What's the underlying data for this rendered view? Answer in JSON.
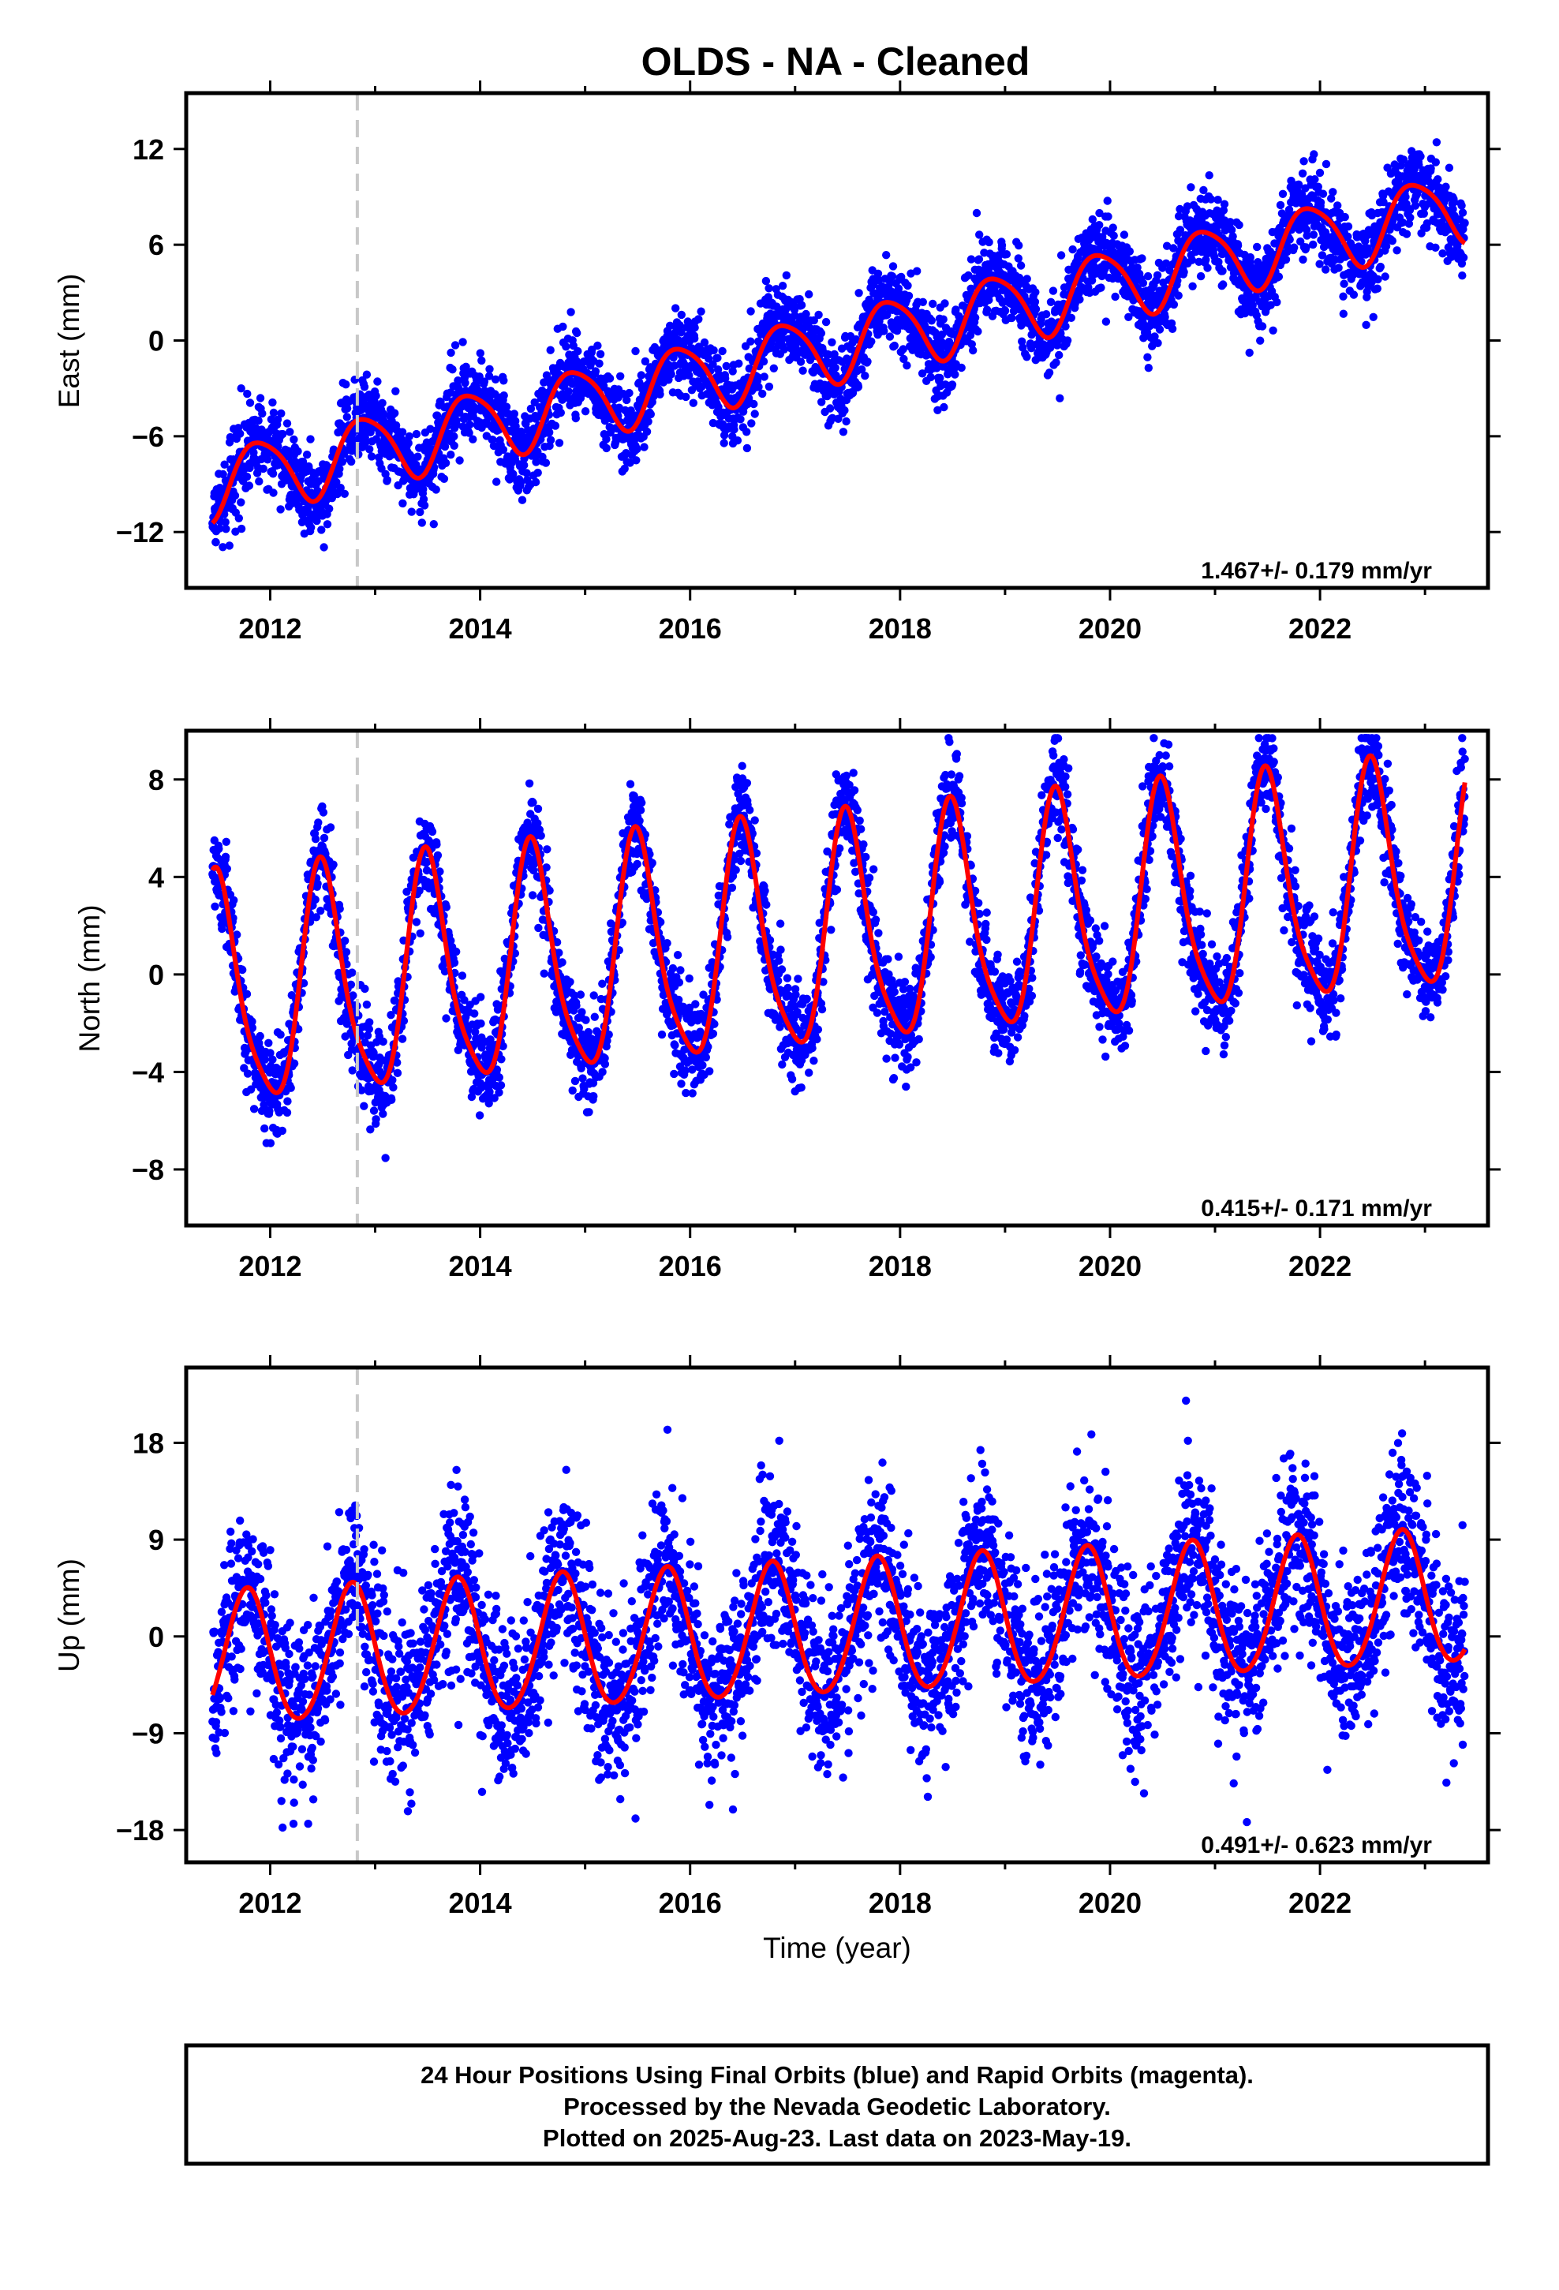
{
  "title": "OLDS  - NA - Cleaned",
  "xlabel": "Time (year)",
  "footer": {
    "line1": "24 Hour Positions Using Final Orbits (blue) and Rapid Orbits (magenta).",
    "line2": "Processed by the Nevada Geodetic Laboratory.",
    "line3": "Plotted on 2025-Aug-23. Last data on 2023-May-19."
  },
  "colors": {
    "points": "#0000ff",
    "model": "#ff0000",
    "event_line": "#c8c8c8"
  },
  "chart_data": [
    {
      "type": "scatter",
      "panel": "east",
      "ylabel": "East (mm)",
      "rate_text": "1.467+/- 0.179 mm/yr",
      "xlim": [
        2011.2,
        2023.6
      ],
      "ylim": [
        -15.5,
        15.5
      ],
      "xticks": [
        2012,
        2014,
        2016,
        2018,
        2020,
        2022
      ],
      "xtick_labels": [
        "2012",
        "2014",
        "2016",
        "2018",
        "2020",
        "2022"
      ],
      "yticks": [
        -12,
        -6,
        0,
        6,
        12
      ],
      "ytick_labels": [
        "−12",
        "−6",
        "0",
        "6",
        "12"
      ],
      "event_line_x": 2012.83,
      "data_start": 2011.45,
      "data_end": 2023.38,
      "model": {
        "t0": 2011.45,
        "offset": -9.0,
        "rate": 1.467,
        "annual_amp": 2.2,
        "annual_peak": 0.9,
        "semiannual_amp": 0.35,
        "semiannual_peak": 0.2,
        "noise": 1.3
      },
      "model_samples": {
        "x": [
          2011.5,
          2012.0,
          2012.5,
          2013.0,
          2013.5,
          2014.0,
          2014.5,
          2015.0,
          2015.5,
          2016.0,
          2016.5,
          2017.0,
          2017.5,
          2018.0,
          2018.5,
          2019.0,
          2019.5,
          2020.0,
          2020.5,
          2021.0,
          2021.5,
          2022.0,
          2022.5,
          2023.0,
          2023.38
        ],
        "y": [
          -12.0,
          -7.0,
          -11.0,
          -4.5,
          -8.5,
          -3.0,
          -7.0,
          -1.5,
          -5.5,
          -0.5,
          -4.0,
          1.5,
          -2.5,
          2.5,
          -1.0,
          4.0,
          0.5,
          5.5,
          2.0,
          7.0,
          3.5,
          8.5,
          5.0,
          10.0,
          6.0
        ]
      }
    },
    {
      "type": "scatter",
      "panel": "north",
      "ylabel": "North (mm)",
      "rate_text": "0.415+/- 0.171 mm/yr",
      "xlim": [
        2011.2,
        2023.6
      ],
      "ylim": [
        -10.3,
        10
      ],
      "xticks": [
        2012,
        2014,
        2016,
        2018,
        2020,
        2022
      ],
      "xtick_labels": [
        "2012",
        "2014",
        "2016",
        "2018",
        "2020",
        "2022"
      ],
      "yticks": [
        -8,
        -4,
        0,
        4,
        8
      ],
      "ytick_labels": [
        "−8",
        "−4",
        "0",
        "4",
        "8"
      ],
      "event_line_x": 2012.83,
      "data_start": 2011.45,
      "data_end": 2023.38,
      "model": {
        "t0": 2011.45,
        "offset": -1.0,
        "rate": 0.415,
        "annual_amp": 4.6,
        "annual_peak": 0.5,
        "semiannual_amp": 0.9,
        "semiannual_peak": 0.45,
        "noise": 1.0
      },
      "model_samples": {
        "x": [
          2011.5,
          2011.6,
          2011.9,
          2012.5,
          2012.9,
          2013.5,
          2013.9,
          2014.5,
          2014.9,
          2015.5,
          2015.9,
          2016.5,
          2016.9,
          2017.5,
          2017.9,
          2018.5,
          2018.9,
          2019.5,
          2019.9,
          2020.5,
          2020.9,
          2021.5,
          2021.9,
          2022.5,
          2022.9,
          2023.38
        ],
        "y": [
          2.0,
          3.5,
          -5.5,
          4.0,
          -5.8,
          3.8,
          -5.3,
          4.2,
          -5.0,
          4.5,
          -4.5,
          5.0,
          -4.0,
          5.5,
          -3.7,
          5.8,
          -3.2,
          6.3,
          -2.9,
          6.7,
          -2.5,
          7.0,
          -2.1,
          7.5,
          -1.6,
          5.2
        ]
      }
    },
    {
      "type": "scatter",
      "panel": "up",
      "ylabel": "Up (mm)",
      "rate_text": "0.491+/- 0.623 mm/yr",
      "xlim": [
        2011.2,
        2023.6
      ],
      "ylim": [
        -21,
        25
      ],
      "xticks": [
        2012,
        2014,
        2016,
        2018,
        2020,
        2022
      ],
      "xtick_labels": [
        "2012",
        "2014",
        "2016",
        "2018",
        "2020",
        "2022"
      ],
      "yticks": [
        -18,
        -9,
        0,
        9,
        18
      ],
      "ytick_labels": [
        "−18",
        "−9",
        "0",
        "9",
        "18"
      ],
      "event_line_x": 2012.83,
      "data_start": 2011.45,
      "data_end": 2023.38,
      "model": {
        "t0": 2011.45,
        "offset": -2.3,
        "rate": 0.491,
        "annual_amp": 6.2,
        "annual_peak": 0.78,
        "semiannual_amp": 0.5,
        "semiannual_peak": 0.3,
        "noise": 4.0
      },
      "model_samples": {
        "x": [
          2011.5,
          2011.8,
          2012.3,
          2012.8,
          2013.3,
          2013.8,
          2014.3,
          2014.8,
          2015.3,
          2015.8,
          2016.3,
          2016.8,
          2017.3,
          2017.8,
          2018.3,
          2018.8,
          2019.3,
          2019.8,
          2020.3,
          2020.8,
          2021.3,
          2021.8,
          2022.3,
          2022.8,
          2023.38
        ],
        "y": [
          -6.0,
          5.5,
          -7.5,
          5.8,
          -9.0,
          4.5,
          -8.5,
          4.8,
          -8.0,
          5.2,
          -7.5,
          5.5,
          -6.8,
          6.0,
          -6.2,
          6.5,
          -5.8,
          7.0,
          -5.2,
          7.5,
          -4.8,
          8.0,
          -4.2,
          8.5,
          -3.5
        ]
      }
    }
  ]
}
